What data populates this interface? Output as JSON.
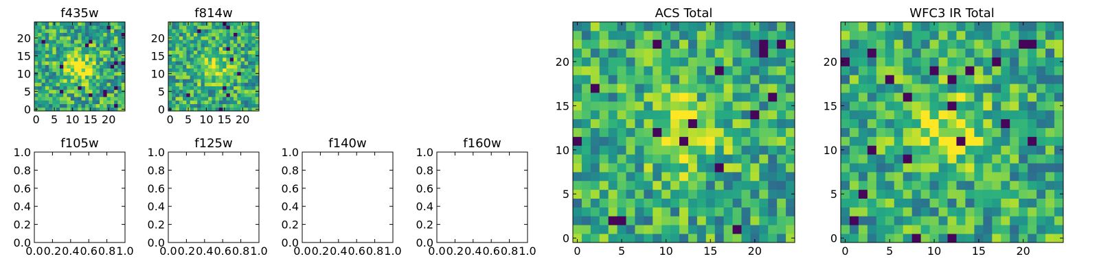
{
  "chart_data": [
    {
      "type": "heatmap",
      "title": "f435w",
      "grid_size": [
        25,
        25
      ],
      "colormap": "viridis",
      "xlim": [
        -0.5,
        24.5
      ],
      "ylim": [
        -0.5,
        24.5
      ],
      "xticks": [
        "0",
        "5",
        "10",
        "15",
        "20"
      ],
      "yticks": [
        "0",
        "5",
        "10",
        "15",
        "20"
      ],
      "xlabel": "",
      "ylabel": "",
      "grid": false
    },
    {
      "type": "heatmap",
      "title": "f814w",
      "grid_size": [
        25,
        25
      ],
      "colormap": "viridis",
      "xlim": [
        -0.5,
        24.5
      ],
      "ylim": [
        -0.5,
        24.5
      ],
      "xticks": [
        "0",
        "5",
        "10",
        "15",
        "20"
      ],
      "yticks": [
        "0",
        "5",
        "10",
        "15",
        "20"
      ],
      "xlabel": "",
      "ylabel": "",
      "grid": false
    },
    {
      "type": "heatmap",
      "title": "f105w",
      "empty": true,
      "xlim": [
        0,
        1
      ],
      "ylim": [
        0,
        1
      ],
      "xticks": [
        "0.0",
        "0.2",
        "0.4",
        "0.6",
        "0.8",
        "1.0"
      ],
      "yticks": [
        "0.0",
        "0.2",
        "0.4",
        "0.6",
        "0.8",
        "1.0"
      ],
      "xlabel": "",
      "ylabel": ""
    },
    {
      "type": "heatmap",
      "title": "f125w",
      "empty": true,
      "xlim": [
        0,
        1
      ],
      "ylim": [
        0,
        1
      ],
      "xticks": [
        "0.0",
        "0.2",
        "0.4",
        "0.6",
        "0.8",
        "1.0"
      ],
      "yticks": [
        "0.0",
        "0.2",
        "0.4",
        "0.6",
        "0.8",
        "1.0"
      ],
      "xlabel": "",
      "ylabel": ""
    },
    {
      "type": "heatmap",
      "title": "f140w",
      "empty": true,
      "xlim": [
        0,
        1
      ],
      "ylim": [
        0,
        1
      ],
      "xticks": [
        "0.0",
        "0.2",
        "0.4",
        "0.6",
        "0.8",
        "1.0"
      ],
      "yticks": [
        "0.0",
        "0.2",
        "0.4",
        "0.6",
        "0.8",
        "1.0"
      ],
      "xlabel": "",
      "ylabel": ""
    },
    {
      "type": "heatmap",
      "title": "f160w",
      "empty": true,
      "xlim": [
        0,
        1
      ],
      "ylim": [
        0,
        1
      ],
      "xticks": [
        "0.0",
        "0.2",
        "0.4",
        "0.6",
        "0.8",
        "1.0"
      ],
      "yticks": [
        "0.0",
        "0.2",
        "0.4",
        "0.6",
        "0.8",
        "1.0"
      ],
      "xlabel": "",
      "ylabel": ""
    },
    {
      "type": "heatmap",
      "title": "ACS Total",
      "grid_size": [
        25,
        25
      ],
      "colormap": "viridis",
      "xlim": [
        -0.5,
        24.5
      ],
      "ylim": [
        -0.5,
        24.5
      ],
      "xticks": [
        "0",
        "5",
        "10",
        "15",
        "20"
      ],
      "yticks": [
        "0",
        "5",
        "10",
        "15",
        "20"
      ],
      "xlabel": "",
      "ylabel": "",
      "grid": false
    },
    {
      "type": "heatmap",
      "title": "WFC3 IR Total",
      "grid_size": [
        25,
        25
      ],
      "colormap": "viridis",
      "xlim": [
        -0.5,
        24.5
      ],
      "ylim": [
        -0.5,
        24.5
      ],
      "xticks": [
        "0",
        "5",
        "10",
        "15",
        "20"
      ],
      "yticks": [
        "0",
        "5",
        "10",
        "15",
        "20"
      ],
      "xlabel": "",
      "ylabel": "",
      "grid": false
    }
  ]
}
